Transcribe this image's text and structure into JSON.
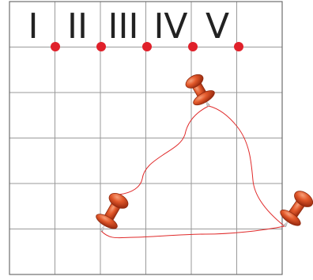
{
  "board": {
    "columns": 6,
    "rows": 6,
    "grid_color": "#9a9a9a",
    "border_color": "#6f6f6f"
  },
  "column_labels": [
    "I",
    "II",
    "III",
    "IV",
    "V"
  ],
  "marker_color": "#e0202a",
  "string_color": "#e02a2a",
  "pins": [
    {
      "name": "pin-top-right",
      "color": "#e85a2a"
    },
    {
      "name": "pin-left",
      "color": "#e85a2a"
    },
    {
      "name": "pin-bottom-right",
      "color": "#e85a2a"
    }
  ]
}
